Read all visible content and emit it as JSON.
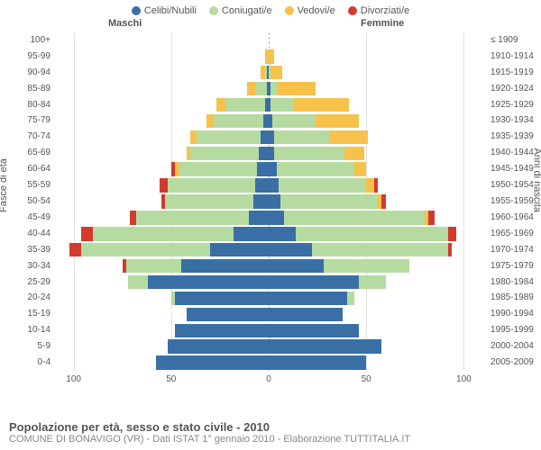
{
  "legend": [
    {
      "label": "Celibi/Nubili",
      "color": "#3a6fa6"
    },
    {
      "label": "Coniugati/e",
      "color": "#b5dba1"
    },
    {
      "label": "Vedovi/e",
      "color": "#f7c24b"
    },
    {
      "label": "Divorziati/e",
      "color": "#d23a2e"
    }
  ],
  "headers": {
    "male": "Maschi",
    "female": "Femmine"
  },
  "axis_titles": {
    "left": "Fasce di età",
    "right": "Anni di nascita"
  },
  "xaxis": {
    "max": 110,
    "ticks": [
      100,
      50,
      0,
      50,
      100
    ]
  },
  "footer": {
    "title": "Popolazione per età, sesso e stato civile - 2010",
    "sub": "COMUNE DI BONAVIGO (VR) - Dati ISTAT 1° gennaio 2010 - Elaborazione TUTTITALIA.IT"
  },
  "rows": [
    {
      "age": "100+",
      "birth": "≤ 1909",
      "m": [
        0,
        0,
        0,
        0
      ],
      "f": [
        0,
        0,
        0,
        0
      ]
    },
    {
      "age": "95-99",
      "birth": "1910-1914",
      "m": [
        0,
        0,
        2,
        0
      ],
      "f": [
        0,
        0,
        3,
        0
      ]
    },
    {
      "age": "90-94",
      "birth": "1915-1919",
      "m": [
        1,
        1,
        2,
        0
      ],
      "f": [
        0,
        1,
        6,
        0
      ]
    },
    {
      "age": "85-89",
      "birth": "1920-1924",
      "m": [
        1,
        6,
        4,
        0
      ],
      "f": [
        1,
        3,
        20,
        0
      ]
    },
    {
      "age": "80-84",
      "birth": "1925-1929",
      "m": [
        2,
        20,
        5,
        0
      ],
      "f": [
        1,
        12,
        28,
        0
      ]
    },
    {
      "age": "75-79",
      "birth": "1930-1934",
      "m": [
        3,
        25,
        4,
        0
      ],
      "f": [
        2,
        22,
        22,
        0
      ]
    },
    {
      "age": "70-74",
      "birth": "1935-1939",
      "m": [
        4,
        33,
        3,
        0
      ],
      "f": [
        3,
        28,
        20,
        0
      ]
    },
    {
      "age": "65-69",
      "birth": "1940-1944",
      "m": [
        5,
        35,
        2,
        0
      ],
      "f": [
        3,
        36,
        10,
        0
      ]
    },
    {
      "age": "60-64",
      "birth": "1945-1949",
      "m": [
        6,
        40,
        2,
        2
      ],
      "f": [
        4,
        40,
        6,
        0
      ]
    },
    {
      "age": "55-59",
      "birth": "1950-1954",
      "m": [
        7,
        45,
        0,
        4
      ],
      "f": [
        5,
        45,
        4,
        2
      ]
    },
    {
      "age": "50-54",
      "birth": "1955-1959",
      "m": [
        8,
        45,
        0,
        2
      ],
      "f": [
        6,
        50,
        2,
        2
      ]
    },
    {
      "age": "45-49",
      "birth": "1960-1964",
      "m": [
        10,
        58,
        0,
        3
      ],
      "f": [
        8,
        72,
        2,
        3
      ]
    },
    {
      "age": "40-44",
      "birth": "1965-1969",
      "m": [
        18,
        72,
        0,
        6
      ],
      "f": [
        14,
        78,
        0,
        4
      ]
    },
    {
      "age": "35-39",
      "birth": "1970-1974",
      "m": [
        30,
        66,
        0,
        6
      ],
      "f": [
        22,
        70,
        0,
        2
      ]
    },
    {
      "age": "30-34",
      "birth": "1975-1979",
      "m": [
        45,
        28,
        0,
        2
      ],
      "f": [
        28,
        44,
        0,
        0
      ]
    },
    {
      "age": "25-29",
      "birth": "1980-1984",
      "m": [
        62,
        10,
        0,
        0
      ],
      "f": [
        46,
        14,
        0,
        0
      ]
    },
    {
      "age": "20-24",
      "birth": "1985-1989",
      "m": [
        48,
        2,
        0,
        0
      ],
      "f": [
        40,
        4,
        0,
        0
      ]
    },
    {
      "age": "15-19",
      "birth": "1990-1994",
      "m": [
        42,
        0,
        0,
        0
      ],
      "f": [
        38,
        0,
        0,
        0
      ]
    },
    {
      "age": "10-14",
      "birth": "1995-1999",
      "m": [
        48,
        0,
        0,
        0
      ],
      "f": [
        46,
        0,
        0,
        0
      ]
    },
    {
      "age": "5-9",
      "birth": "2000-2004",
      "m": [
        52,
        0,
        0,
        0
      ],
      "f": [
        58,
        0,
        0,
        0
      ]
    },
    {
      "age": "0-4",
      "birth": "2005-2009",
      "m": [
        58,
        0,
        0,
        0
      ],
      "f": [
        50,
        0,
        0,
        0
      ]
    }
  ],
  "style": {
    "background": "#ffffff",
    "grid_color": "#e0e0e0",
    "center_line_color": "#bbbbbb",
    "row_gap_pct": 14
  }
}
